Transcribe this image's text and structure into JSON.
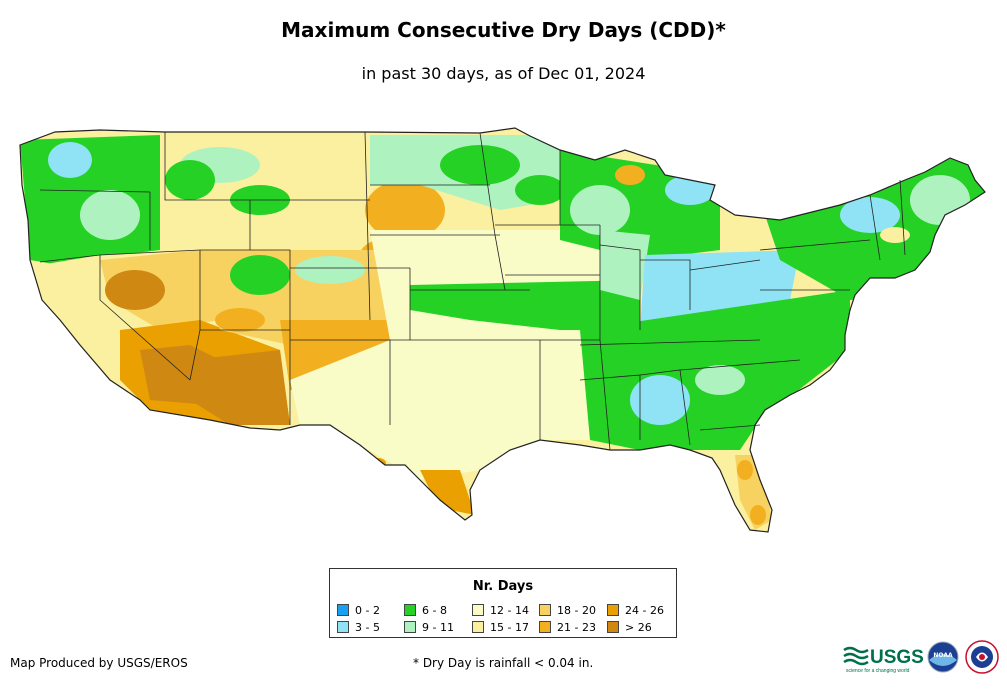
{
  "title": "Maximum Consecutive Dry Days (CDD)*",
  "subtitle": "in past 30 days, as of Dec 01, 2024",
  "legend": {
    "title": "Nr. Days",
    "items": [
      {
        "label": "0 - 2",
        "color": "#1aa0f0"
      },
      {
        "label": "3 - 5",
        "color": "#8fe3f5"
      },
      {
        "label": "6 - 8",
        "color": "#25d125"
      },
      {
        "label": "9 - 11",
        "color": "#aef2c0"
      },
      {
        "label": "12 - 14",
        "color": "#fafcc8"
      },
      {
        "label": "15 - 17",
        "color": "#faf0a0"
      },
      {
        "label": "18 - 20",
        "color": "#f8d260"
      },
      {
        "label": "21 - 23",
        "color": "#f2b020"
      },
      {
        "label": "24 - 26",
        "color": "#eaa000"
      },
      {
        "label": "> 26",
        "color": "#cf8812"
      }
    ]
  },
  "credit": "Map Produced by USGS/EROS",
  "footnote": "* Dry Day is rainfall < 0.04 in.",
  "logos": {
    "usgs_text": "USGS",
    "usgs_tagline": "science for a changing world",
    "noaa_text": "NOAA"
  }
}
